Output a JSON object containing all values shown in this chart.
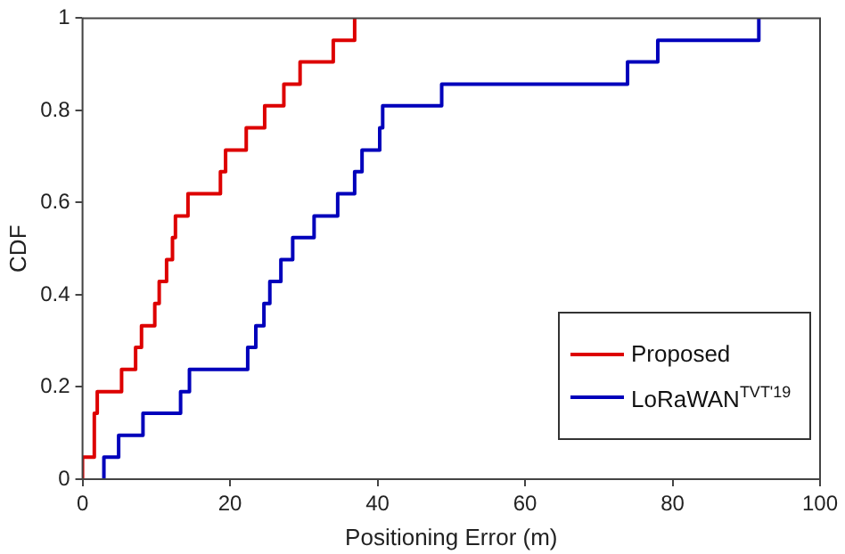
{
  "chart_data": {
    "type": "step",
    "xlabel": "Positioning Error (m)",
    "ylabel": "CDF",
    "xlim": [
      0,
      100
    ],
    "xticks": [
      0,
      20,
      40,
      60,
      80,
      100
    ],
    "ylim": [
      0,
      1
    ],
    "yticks": [
      0,
      0.2,
      0.4,
      0.6,
      0.8,
      1
    ],
    "grid": false,
    "legend": "bottom right",
    "line_style": "solid",
    "marker": "none",
    "series": [
      {
        "name": "Proposed",
        "color": "#dd0000",
        "x": [
          0,
          0,
          1.6,
          2.0,
          5.3,
          7.2,
          8.0,
          9.8,
          10.4,
          11.4,
          12.2,
          12.6,
          14.3,
          18.7,
          19.4,
          22.2,
          24.7,
          27.3,
          29.5,
          34.0,
          36.9
        ],
        "values": [
          0,
          0.048,
          0.143,
          0.19,
          0.238,
          0.286,
          0.333,
          0.381,
          0.429,
          0.476,
          0.524,
          0.571,
          0.619,
          0.667,
          0.714,
          0.762,
          0.81,
          0.857,
          0.905,
          0.952,
          1
        ]
      },
      {
        "name": "LoRaWAN$^{TVT'19}$",
        "color": "#0000bb",
        "x": [
          2.9,
          2.9,
          4.9,
          8.2,
          13.3,
          14.5,
          22.4,
          23.5,
          24.6,
          25.4,
          26.9,
          28.5,
          31.4,
          34.6,
          36.9,
          37.9,
          40.3,
          40.7,
          48.7,
          73.9,
          78.0,
          91.7
        ],
        "values": [
          0,
          0.048,
          0.095,
          0.143,
          0.19,
          0.238,
          0.286,
          0.333,
          0.381,
          0.429,
          0.476,
          0.524,
          0.571,
          0.619,
          0.667,
          0.714,
          0.762,
          0.81,
          0.857,
          0.905,
          0.952,
          1
        ]
      }
    ]
  }
}
